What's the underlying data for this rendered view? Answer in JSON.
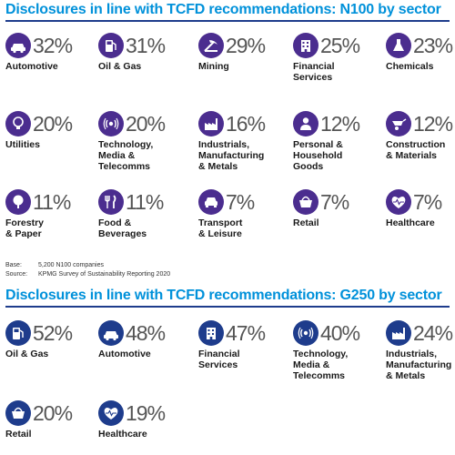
{
  "chart_data": [
    {
      "type": "table",
      "title": "Disclosures in line with TCFD recommendations: N100 by sector",
      "items": [
        {
          "sector": "Automotive",
          "value": 32,
          "label": "32%",
          "icon": "car-icon"
        },
        {
          "sector": "Oil & Gas",
          "value": 31,
          "label": "31%",
          "icon": "fuel-pump-icon"
        },
        {
          "sector": "Mining",
          "value": 29,
          "label": "29%",
          "icon": "mining-icon"
        },
        {
          "sector": "Financial Services",
          "value": 25,
          "label": "25%",
          "icon": "bank-building-icon"
        },
        {
          "sector": "Chemicals",
          "value": 23,
          "label": "23%",
          "icon": "flask-icon"
        },
        {
          "sector": "Utilities",
          "value": 20,
          "label": "20%",
          "icon": "lightbulb-icon"
        },
        {
          "sector": "Technology, Media & Telecomms",
          "value": 20,
          "label": "20%",
          "icon": "broadcast-icon"
        },
        {
          "sector": "Industrials, Manufacturing & Metals",
          "value": 16,
          "label": "16%",
          "icon": "factory-icon"
        },
        {
          "sector": "Personal & Household Goods",
          "value": 12,
          "label": "12%",
          "icon": "person-icon"
        },
        {
          "sector": "Construction & Materials",
          "value": 12,
          "label": "12%",
          "icon": "wheelbarrow-icon"
        },
        {
          "sector": "Forestry & Paper",
          "value": 11,
          "label": "11%",
          "icon": "tree-icon"
        },
        {
          "sector": "Food & Beverages",
          "value": 11,
          "label": "11%",
          "icon": "cutlery-icon"
        },
        {
          "sector": "Transport & Leisure",
          "value": 7,
          "label": "7%",
          "icon": "car-front-icon"
        },
        {
          "sector": "Retail",
          "value": 7,
          "label": "7%",
          "icon": "shopping-basket-icon"
        },
        {
          "sector": "Healthcare",
          "value": 7,
          "label": "7%",
          "icon": "heart-pulse-icon"
        }
      ]
    },
    {
      "type": "table",
      "title": "Disclosures in line with TCFD recommendations: G250 by sector",
      "items": [
        {
          "sector": "Oil & Gas",
          "value": 52,
          "label": "52%",
          "icon": "fuel-pump-icon"
        },
        {
          "sector": "Automotive",
          "value": 48,
          "label": "48%",
          "icon": "car-icon"
        },
        {
          "sector": "Financial Services",
          "value": 47,
          "label": "47%",
          "icon": "bank-building-icon"
        },
        {
          "sector": "Technology, Media & Telecomms",
          "value": 40,
          "label": "40%",
          "icon": "broadcast-icon"
        },
        {
          "sector": "Industrials, Manufacturing & Metals",
          "value": 24,
          "label": "24%",
          "icon": "factory-icon"
        },
        {
          "sector": "Retail",
          "value": 20,
          "label": "20%",
          "icon": "shopping-basket-icon"
        },
        {
          "sector": "Healthcare",
          "value": 19,
          "label": "19%",
          "icon": "heart-pulse-icon"
        }
      ]
    }
  ],
  "labels": {
    "n100": [
      [
        "Automotive"
      ],
      [
        "Oil & Gas"
      ],
      [
        "Mining"
      ],
      [
        "Financial",
        "Services"
      ],
      [
        "Chemicals"
      ],
      [
        "Utilities"
      ],
      [
        "Technology,",
        "Media &",
        "Telecomms"
      ],
      [
        "Industrials,",
        "Manufacturing",
        "& Metals"
      ],
      [
        "Personal &",
        "Household",
        "Goods"
      ],
      [
        "Construction",
        "& Materials"
      ],
      [
        "Forestry",
        "& Paper"
      ],
      [
        "Food &",
        "Beverages"
      ],
      [
        "Transport",
        "& Leisure"
      ],
      [
        "Retail"
      ],
      [
        "Healthcare"
      ]
    ],
    "g250": [
      [
        "Oil & Gas"
      ],
      [
        "Automotive"
      ],
      [
        "Financial",
        "Services"
      ],
      [
        "Technology,",
        "Media &",
        "Telecomms"
      ],
      [
        "Industrials,",
        "Manufacturing",
        "& Metals"
      ],
      [
        "Retail"
      ],
      [
        "Healthcare"
      ]
    ]
  },
  "footer": {
    "base_key": "Base:",
    "base_value": "5,200 N100 companies",
    "source_key": "Source:",
    "source_value": "KPMG Survey of Sustainability Reporting 2020"
  },
  "colors": {
    "n100_icon": "#4b2d8f",
    "g250_icon": "#1e3c8c",
    "title": "#0091da",
    "rule": "#1e3c8c"
  }
}
